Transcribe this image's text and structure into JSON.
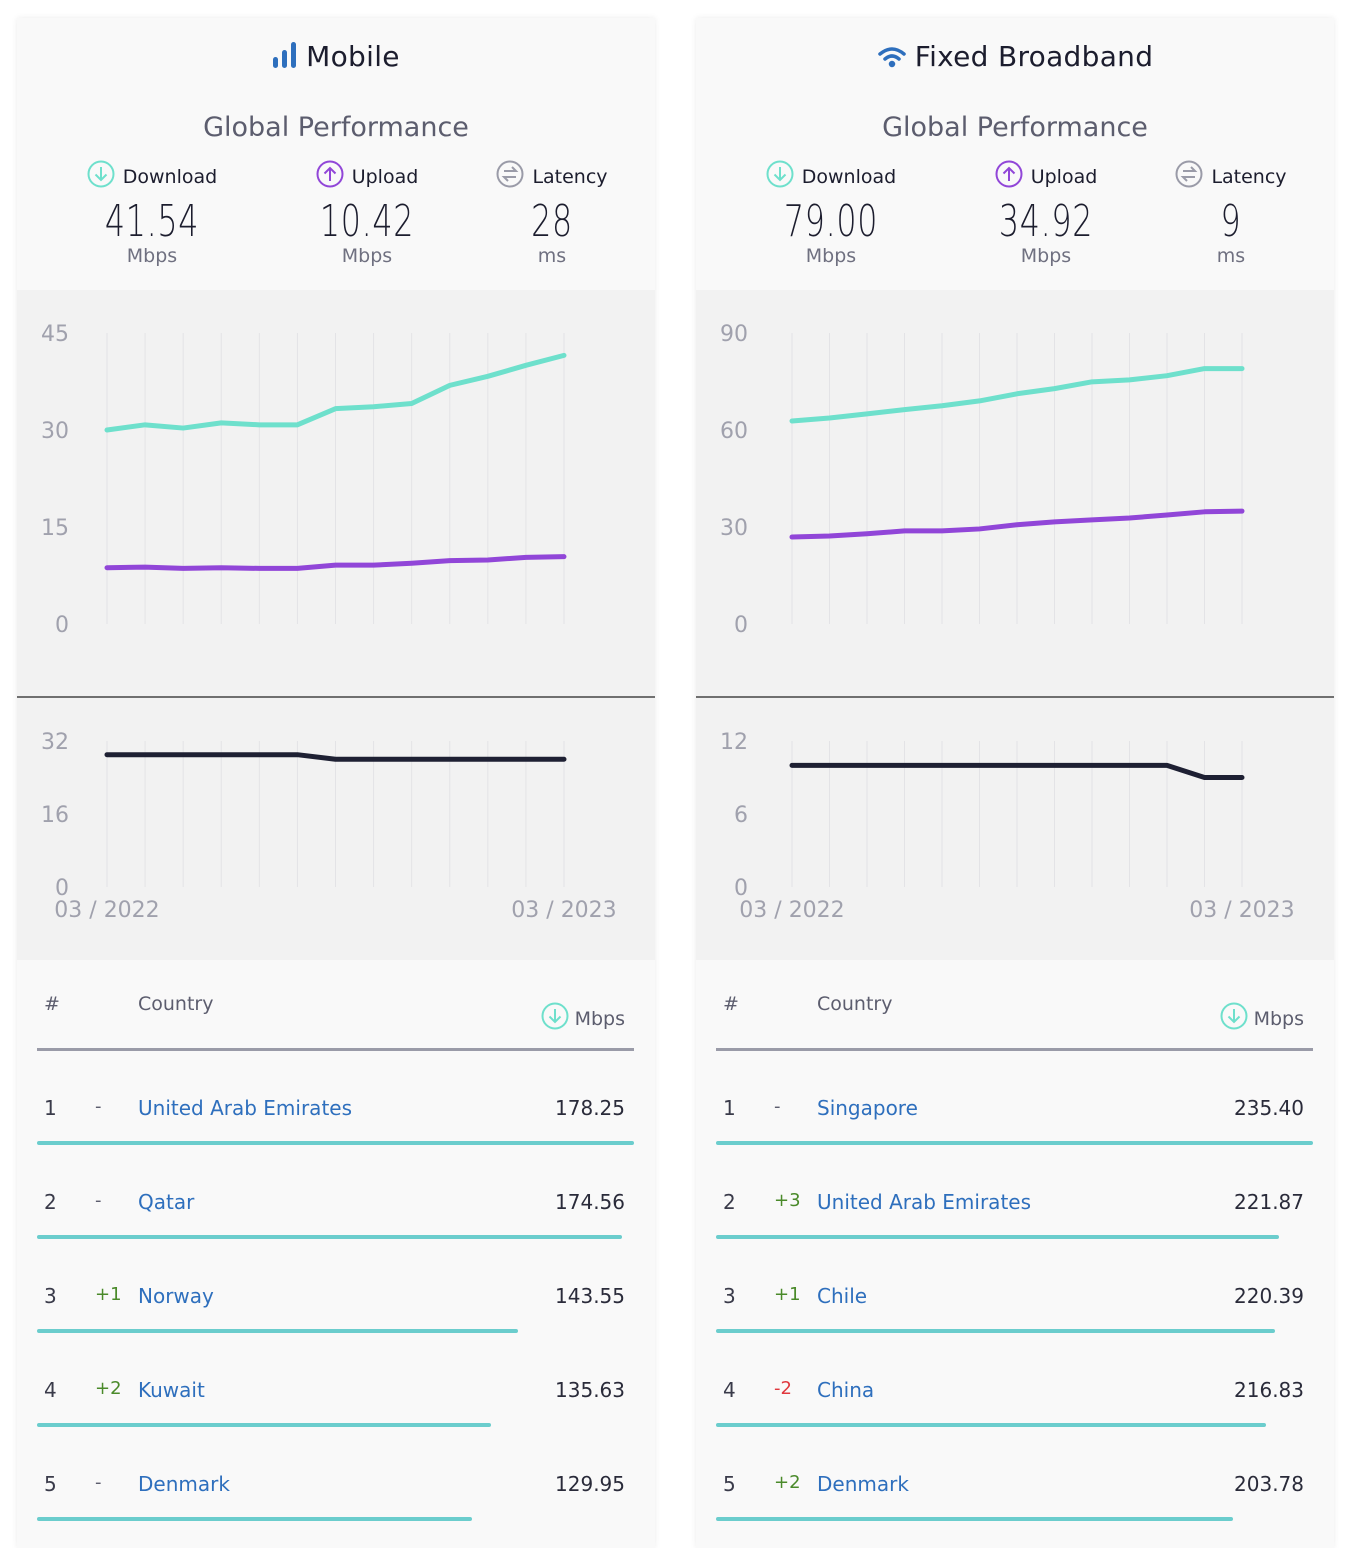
{
  "colors": {
    "download": "#6ee0cc",
    "upload": "#9146d8",
    "latency": "#1e2033",
    "accent": "#2e6fbd",
    "positive": "#4a8a2a",
    "negative": "#e0383e",
    "bar": "#6bcdcd"
  },
  "panels": [
    {
      "title": "Mobile",
      "icon": "signal-bars-icon",
      "subtitle": "Global Performance",
      "stats": [
        {
          "label": "Download",
          "icon": "download-icon",
          "value": "41.54",
          "unit": "Mbps"
        },
        {
          "label": "Upload",
          "icon": "upload-icon",
          "value": "10.42",
          "unit": "Mbps"
        },
        {
          "label": "Latency",
          "icon": "latency-icon",
          "value": "28",
          "unit": "ms"
        }
      ],
      "table": {
        "headers": {
          "rank": "#",
          "country": "Country",
          "value": "Mbps"
        },
        "rows": [
          {
            "rank": "1",
            "change": "-",
            "country": "United Arab Emirates",
            "value": "178.25"
          },
          {
            "rank": "2",
            "change": "-",
            "country": "Qatar",
            "value": "174.56"
          },
          {
            "rank": "3",
            "change": "+1",
            "country": "Norway",
            "value": "143.55"
          },
          {
            "rank": "4",
            "change": "+2",
            "country": "Kuwait",
            "value": "135.63"
          },
          {
            "rank": "5",
            "change": "-",
            "country": "Denmark",
            "value": "129.95"
          }
        ]
      }
    },
    {
      "title": "Fixed Broadband",
      "icon": "wifi-icon",
      "subtitle": "Global Performance",
      "stats": [
        {
          "label": "Download",
          "icon": "download-icon",
          "value": "79.00",
          "unit": "Mbps"
        },
        {
          "label": "Upload",
          "icon": "upload-icon",
          "value": "34.92",
          "unit": "Mbps"
        },
        {
          "label": "Latency",
          "icon": "latency-icon",
          "value": "9",
          "unit": "ms"
        }
      ],
      "table": {
        "headers": {
          "rank": "#",
          "country": "Country",
          "value": "Mbps"
        },
        "rows": [
          {
            "rank": "1",
            "change": "-",
            "country": "Singapore",
            "value": "235.40"
          },
          {
            "rank": "2",
            "change": "+3",
            "country": "United Arab Emirates",
            "value": "221.87"
          },
          {
            "rank": "3",
            "change": "+1",
            "country": "Chile",
            "value": "220.39"
          },
          {
            "rank": "4",
            "change": "-2",
            "country": "China",
            "value": "216.83"
          },
          {
            "rank": "5",
            "change": "+2",
            "country": "Denmark",
            "value": "203.78"
          }
        ]
      }
    }
  ],
  "chart_data": [
    {
      "type": "line",
      "panel": "Mobile",
      "x_labels": [
        "03 / 2022",
        "03 / 2023"
      ],
      "ylim": [
        0,
        45
      ],
      "yticks": [
        "45",
        "30",
        "15",
        "0"
      ],
      "grid": "vertical",
      "series": [
        {
          "key": "download",
          "values": [
            30.0,
            30.8,
            30.3,
            31.1,
            30.8,
            30.8,
            33.3,
            33.6,
            34.1,
            36.9,
            38.3,
            40.0,
            41.54
          ]
        },
        {
          "key": "upload",
          "values": [
            8.7,
            8.8,
            8.6,
            8.7,
            8.6,
            8.6,
            9.1,
            9.1,
            9.4,
            9.8,
            9.9,
            10.3,
            10.42
          ]
        }
      ]
    },
    {
      "type": "line",
      "panel": "Mobile",
      "ylim": [
        0,
        32
      ],
      "yticks": [
        "32",
        "16",
        "0"
      ],
      "grid": "vertical",
      "series": [
        {
          "key": "latency",
          "values": [
            29,
            29,
            29,
            29,
            29,
            29,
            28,
            28,
            28,
            28,
            28,
            28,
            28
          ]
        }
      ]
    },
    {
      "type": "line",
      "panel": "Fixed Broadband",
      "x_labels": [
        "03 / 2022",
        "03 / 2023"
      ],
      "ylim": [
        0,
        90
      ],
      "yticks": [
        "90",
        "60",
        "30",
        "0"
      ],
      "grid": "vertical",
      "series": [
        {
          "key": "download",
          "values": [
            62.8,
            63.7,
            65.0,
            66.3,
            67.5,
            69.0,
            71.2,
            72.8,
            74.9,
            75.5,
            76.8,
            79.0,
            79.0
          ]
        },
        {
          "key": "upload",
          "values": [
            26.9,
            27.2,
            27.9,
            28.8,
            28.8,
            29.4,
            30.7,
            31.6,
            32.2,
            32.8,
            33.7,
            34.7,
            34.92
          ]
        }
      ]
    },
    {
      "type": "line",
      "panel": "Fixed Broadband",
      "ylim": [
        0,
        12
      ],
      "yticks": [
        "12",
        "6",
        "0"
      ],
      "grid": "vertical",
      "series": [
        {
          "key": "latency",
          "values": [
            10,
            10,
            10,
            10,
            10,
            10,
            10,
            10,
            10,
            10,
            10,
            9,
            9
          ]
        }
      ]
    }
  ]
}
